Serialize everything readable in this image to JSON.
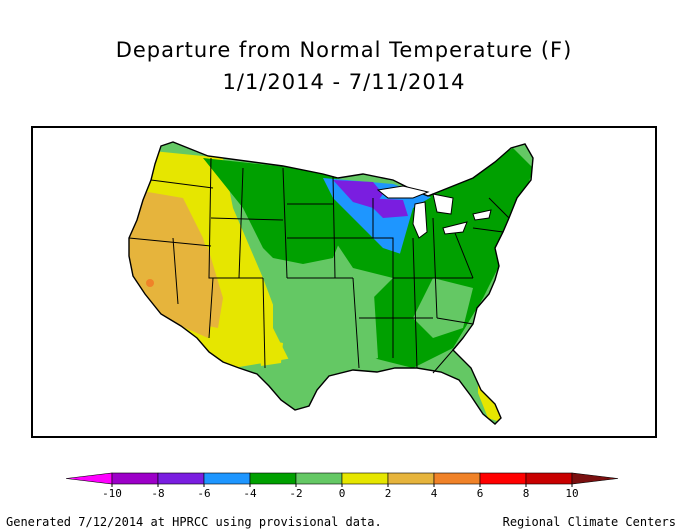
{
  "title": {
    "line1": "Departure from Normal Temperature (F)",
    "line2": "1/1/2014 - 7/11/2014"
  },
  "legend": {
    "tick_labels": [
      "-10",
      "-8",
      "-6",
      "-4",
      "-2",
      "0",
      "2",
      "4",
      "6",
      "8",
      "10"
    ],
    "colors": [
      "#ff00ff",
      "#9c00c8",
      "#7a1ee0",
      "#1e96ff",
      "#00a000",
      "#64c864",
      "#e6e600",
      "#e6b43c",
      "#f08228",
      "#ff0000",
      "#c80000",
      "#7a1010"
    ]
  },
  "footer": {
    "left": "Generated 7/12/2014 at HPRCC using provisional data.",
    "right": "Regional Climate Centers"
  }
}
